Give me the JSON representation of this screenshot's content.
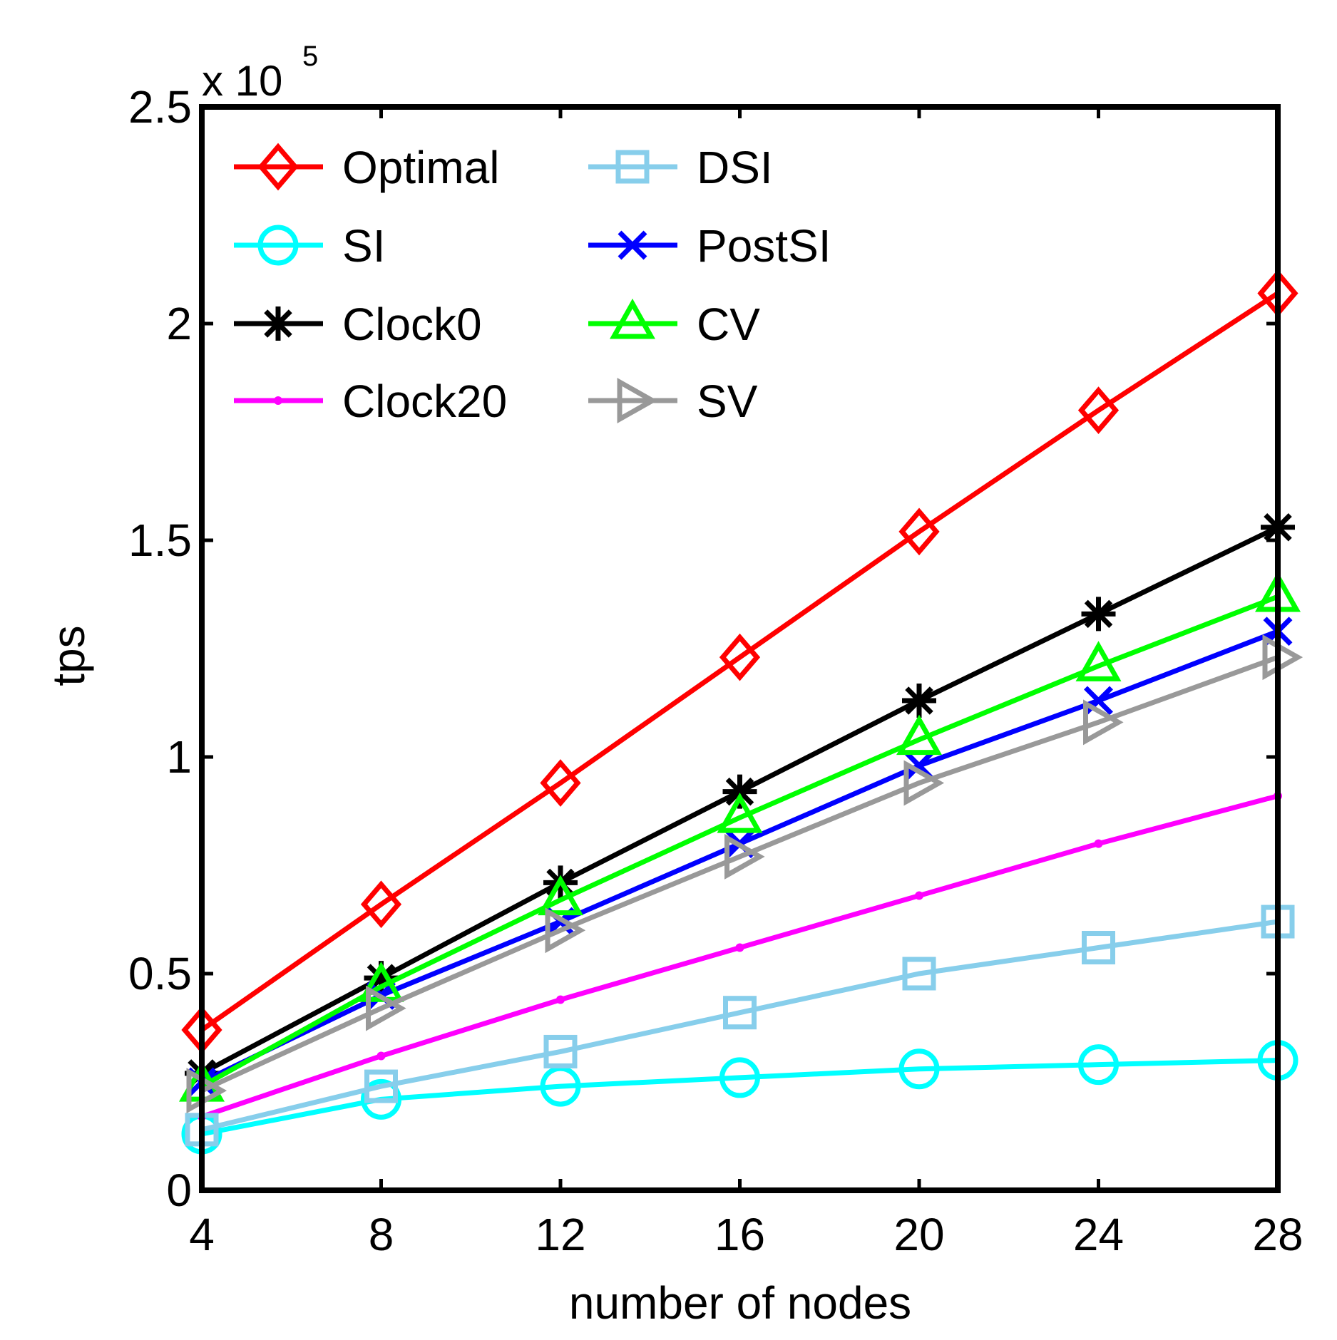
{
  "chart_data": {
    "type": "line",
    "title": "",
    "xlabel": "number of nodes",
    "ylabel": "tps",
    "x": [
      4,
      8,
      12,
      16,
      20,
      24,
      28
    ],
    "xlim": [
      4,
      28
    ],
    "ylim": [
      0,
      2.5
    ],
    "xticks": [
      "4",
      "8",
      "12",
      "16",
      "20",
      "24",
      "28"
    ],
    "yticks": [
      "0",
      "0.5",
      "1",
      "1.5",
      "2",
      "2.5"
    ],
    "y_scale_label": "x 10",
    "y_scale_exponent": "5",
    "grid": false,
    "legend_position": "top-left",
    "series": [
      {
        "name": "Optimal",
        "color": "#ff0000",
        "marker": "diamond",
        "values": [
          0.37,
          0.66,
          0.94,
          1.23,
          1.52,
          1.8,
          2.07
        ]
      },
      {
        "name": "SI",
        "color": "#00ffff",
        "marker": "circle",
        "values": [
          0.13,
          0.21,
          0.24,
          0.26,
          0.28,
          0.29,
          0.3
        ]
      },
      {
        "name": "Clock0",
        "color": "#000000",
        "marker": "asterisk",
        "values": [
          0.27,
          0.49,
          0.71,
          0.92,
          1.13,
          1.33,
          1.53
        ]
      },
      {
        "name": "Clock20",
        "color": "#ff00ff",
        "marker": "dot",
        "values": [
          0.17,
          0.31,
          0.44,
          0.56,
          0.68,
          0.8,
          0.91
        ]
      },
      {
        "name": "DSI",
        "color": "#87ceeb",
        "marker": "square",
        "values": [
          0.14,
          0.24,
          0.32,
          0.41,
          0.5,
          0.56,
          0.62
        ]
      },
      {
        "name": "PostSI",
        "color": "#0000ff",
        "marker": "x",
        "values": [
          0.25,
          0.45,
          0.62,
          0.8,
          0.98,
          1.13,
          1.29
        ]
      },
      {
        "name": "CV",
        "color": "#00ff00",
        "marker": "triangle-up",
        "values": [
          0.24,
          0.47,
          0.67,
          0.86,
          1.04,
          1.21,
          1.37
        ]
      },
      {
        "name": "SV",
        "color": "#999999",
        "marker": "triangle-right",
        "values": [
          0.23,
          0.42,
          0.6,
          0.77,
          0.94,
          1.08,
          1.23
        ]
      }
    ]
  }
}
